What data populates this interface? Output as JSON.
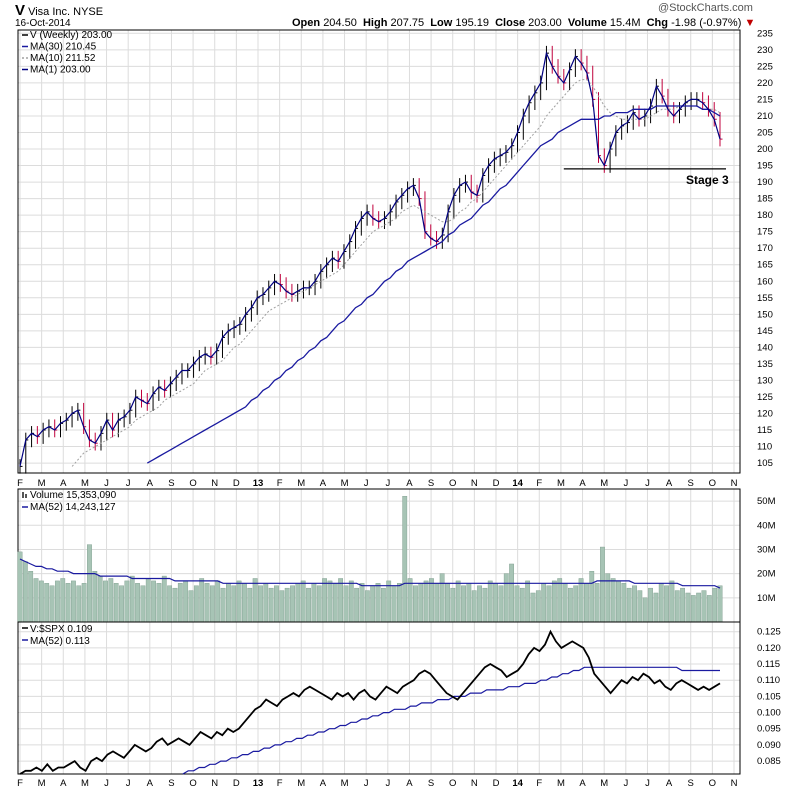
{
  "header": {
    "symbol": "V",
    "name": "Visa Inc.",
    "exchange": "NYSE",
    "date": "16-Oct-2014",
    "open_label": "Open",
    "open": "204.50",
    "high_label": "High",
    "high": "207.75",
    "low_label": "Low",
    "low": "195.19",
    "close_label": "Close",
    "close": "203.00",
    "volume_label": "Volume",
    "volume": "15.4M",
    "chg_label": "Chg",
    "chg": "-1.98 (-0.97%)",
    "watermark": "@StockCharts.com"
  },
  "colors": {
    "ma30": "#1a1aa0",
    "ma10": "#a0a0a0",
    "price": "#000080",
    "up": "#000000",
    "down": "#c0003c",
    "volume_bar": "#a7c4b5",
    "ratio": "#000000",
    "grid": "#dcdcdc"
  },
  "chart_data": [
    {
      "type": "line",
      "panel": "price",
      "legend": [
        "V (Weekly) 203.00",
        "MA(30) 210.45",
        "MA(10) 211.52",
        "MA(1) 203.00"
      ],
      "x_labels": [
        "F",
        "M",
        "A",
        "M",
        "J",
        "J",
        "A",
        "S",
        "O",
        "N",
        "D",
        "13",
        "F",
        "M",
        "A",
        "M",
        "J",
        "J",
        "A",
        "S",
        "O",
        "N",
        "D",
        "14",
        "F",
        "M",
        "A",
        "M",
        "J",
        "J",
        "A",
        "S",
        "O",
        "N"
      ],
      "y_ticks": [
        105,
        110,
        115,
        120,
        125,
        130,
        135,
        140,
        145,
        150,
        155,
        160,
        165,
        170,
        175,
        180,
        185,
        190,
        195,
        200,
        205,
        210,
        215,
        220,
        225,
        230,
        235
      ],
      "ylim": [
        102,
        236
      ],
      "annotation": "Stage 3",
      "support_level": 194,
      "series": [
        {
          "name": "V (Weekly)",
          "values": [
            104,
            112,
            114,
            113,
            115,
            116,
            115,
            117,
            118,
            120,
            121,
            116,
            112,
            111,
            114,
            118,
            115,
            118,
            119,
            121,
            125,
            124,
            123,
            126,
            128,
            127,
            129,
            131,
            133,
            133,
            135,
            137,
            138,
            137,
            139,
            143,
            145,
            146,
            147,
            150,
            152,
            155,
            156,
            158,
            160,
            159,
            157,
            156,
            157,
            158,
            158,
            160,
            163,
            165,
            167,
            166,
            169,
            172,
            176,
            179,
            181,
            179,
            178,
            179,
            181,
            184,
            186,
            188,
            189,
            185,
            175,
            173,
            172,
            174,
            181,
            186,
            189,
            190,
            187,
            186,
            192,
            195,
            197,
            198,
            199,
            201,
            205,
            210,
            214,
            217,
            220,
            229,
            225,
            222,
            220,
            224,
            228,
            226,
            223,
            215,
            198,
            195,
            200,
            205,
            207,
            208,
            211,
            209,
            210,
            213,
            219,
            216,
            212,
            210,
            212,
            214,
            215,
            215,
            214,
            212,
            209,
            203
          ]
        },
        {
          "name": "MA(30)",
          "values": [
            null,
            null,
            null,
            null,
            null,
            null,
            null,
            null,
            null,
            null,
            null,
            null,
            null,
            null,
            null,
            null,
            null,
            null,
            null,
            null,
            null,
            null,
            105,
            106,
            107,
            108,
            109,
            110,
            111,
            112,
            113,
            114,
            115,
            116,
            117,
            118,
            119,
            120,
            121,
            122,
            124,
            125,
            127,
            128,
            130,
            131,
            133,
            134,
            136,
            137,
            139,
            140,
            142,
            143,
            145,
            147,
            148,
            150,
            152,
            153,
            155,
            156,
            158,
            160,
            161,
            163,
            164,
            166,
            167,
            168,
            169,
            170,
            171,
            172,
            174,
            175,
            177,
            178,
            179,
            181,
            183,
            184,
            186,
            188,
            189,
            191,
            193,
            195,
            197,
            199,
            201,
            202,
            203,
            205,
            206,
            207,
            208,
            209,
            209,
            209,
            209,
            210,
            210,
            211,
            211,
            211,
            212,
            212,
            212,
            212,
            213,
            213,
            213,
            213,
            213,
            213,
            213,
            213,
            212,
            212,
            211,
            210
          ]
        },
        {
          "name": "MA(10)",
          "values": [
            null,
            null,
            null,
            null,
            null,
            null,
            null,
            null,
            null,
            104,
            106,
            108,
            109,
            110,
            111,
            112,
            113,
            114,
            115,
            116,
            118,
            119,
            120,
            121,
            122,
            124,
            125,
            126,
            127,
            128,
            129,
            131,
            133,
            134,
            135,
            136,
            138,
            140,
            141,
            143,
            145,
            147,
            149,
            151,
            152,
            153,
            154,
            155,
            156,
            157,
            158,
            159,
            160,
            161,
            162,
            163,
            165,
            167,
            169,
            171,
            173,
            175,
            176,
            177,
            178,
            179,
            181,
            182,
            183,
            182,
            181,
            180,
            179,
            178,
            178,
            179,
            181,
            182,
            184,
            185,
            187,
            189,
            191,
            193,
            195,
            197,
            199,
            201,
            203,
            205,
            207,
            210,
            212,
            214,
            216,
            218,
            220,
            221,
            221,
            219,
            216,
            213,
            211,
            210,
            209,
            209,
            209,
            209,
            209,
            210,
            211,
            212,
            212,
            212,
            213,
            213,
            213,
            213,
            212,
            212,
            212,
            211
          ]
        }
      ]
    },
    {
      "type": "bar",
      "panel": "volume",
      "legend": [
        "Volume 15,353,090",
        "MA(52) 14,243,127"
      ],
      "y_ticks": [
        "10M",
        "20M",
        "30M",
        "40M",
        "50M"
      ],
      "ylim": [
        0,
        55
      ],
      "series": [
        {
          "name": "Volume",
          "values": [
            29,
            25,
            21,
            18,
            17,
            16,
            15,
            17,
            18,
            16,
            17,
            15,
            16,
            32,
            21,
            19,
            17,
            18,
            16,
            15,
            17,
            19,
            16,
            15,
            18,
            17,
            16,
            19,
            15,
            14,
            16,
            17,
            13,
            15,
            18,
            16,
            15,
            17,
            14,
            16,
            15,
            17,
            16,
            14,
            18,
            15,
            16,
            14,
            15,
            13,
            14,
            15,
            16,
            17,
            14,
            16,
            15,
            18,
            17,
            16,
            18,
            15,
            17,
            14,
            16,
            13,
            15,
            16,
            14,
            17,
            15,
            16,
            52,
            18,
            15,
            16,
            17,
            18,
            16,
            20,
            16,
            14,
            17,
            15,
            16,
            13,
            15,
            14,
            17,
            16,
            15,
            20,
            24,
            15,
            14,
            17,
            12,
            13,
            16,
            15,
            17,
            18,
            16,
            14,
            15,
            18,
            16,
            21,
            16,
            31,
            20,
            18,
            17,
            16,
            14,
            15,
            13,
            10,
            14,
            12,
            16,
            15,
            17,
            13,
            14,
            12,
            11,
            12,
            13,
            11,
            14,
            15
          ]
        },
        {
          "name": "MA(52)",
          "values": [
            26,
            25,
            24,
            23,
            23,
            22,
            22,
            21,
            21,
            21,
            20,
            20,
            20,
            20,
            20,
            19,
            19,
            19,
            19,
            19,
            19,
            18,
            18,
            18,
            18,
            18,
            18,
            18,
            18,
            17,
            17,
            17,
            17,
            17,
            17,
            17,
            17,
            17,
            16,
            16,
            16,
            16,
            16,
            16,
            16,
            16,
            16,
            16,
            16,
            16,
            16,
            16,
            16,
            16,
            16,
            16,
            16,
            16,
            16,
            16,
            16,
            16,
            16,
            16,
            15,
            15,
            15,
            15,
            15,
            15,
            15,
            15,
            16,
            16,
            16,
            16,
            16,
            16,
            16,
            16,
            16,
            16,
            16,
            16,
            16,
            16,
            16,
            16,
            16,
            16,
            16,
            16,
            16,
            16,
            16,
            16,
            16,
            16,
            16,
            16,
            16,
            16,
            16,
            16,
            16,
            16,
            16,
            16,
            17,
            17,
            17,
            17,
            17,
            17,
            17,
            16,
            16,
            16,
            16,
            16,
            16,
            16,
            16,
            16,
            15,
            15,
            15,
            15,
            15,
            15,
            15,
            14
          ]
        }
      ]
    },
    {
      "type": "line",
      "panel": "relative",
      "legend": [
        "V:$SPX 0.109",
        "MA(52) 0.113"
      ],
      "y_ticks": [
        0.085,
        0.09,
        0.095,
        0.1,
        0.105,
        0.11,
        0.115,
        0.12,
        0.125
      ],
      "ylim": [
        0.081,
        0.128
      ],
      "series": [
        {
          "name": "V:$SPX",
          "values": [
            0.081,
            0.082,
            0.082,
            0.083,
            0.082,
            0.084,
            0.082,
            0.083,
            0.083,
            0.084,
            0.085,
            0.083,
            0.082,
            0.085,
            0.086,
            0.085,
            0.087,
            0.088,
            0.087,
            0.086,
            0.088,
            0.09,
            0.089,
            0.088,
            0.089,
            0.091,
            0.092,
            0.09,
            0.091,
            0.092,
            0.091,
            0.09,
            0.092,
            0.094,
            0.093,
            0.092,
            0.094,
            0.093,
            0.095,
            0.094,
            0.095,
            0.097,
            0.099,
            0.101,
            0.102,
            0.104,
            0.103,
            0.102,
            0.104,
            0.105,
            0.106,
            0.105,
            0.107,
            0.108,
            0.107,
            0.106,
            0.105,
            0.104,
            0.106,
            0.105,
            0.106,
            0.104,
            0.106,
            0.107,
            0.105,
            0.104,
            0.106,
            0.108,
            0.107,
            0.106,
            0.108,
            0.109,
            0.11,
            0.112,
            0.113,
            0.112,
            0.11,
            0.108,
            0.106,
            0.105,
            0.104,
            0.106,
            0.108,
            0.11,
            0.112,
            0.114,
            0.115,
            0.114,
            0.113,
            0.111,
            0.112,
            0.113,
            0.115,
            0.118,
            0.12,
            0.119,
            0.121,
            0.125,
            0.122,
            0.12,
            0.121,
            0.122,
            0.121,
            0.12,
            0.117,
            0.112,
            0.11,
            0.108,
            0.106,
            0.108,
            0.11,
            0.109,
            0.111,
            0.11,
            0.112,
            0.111,
            0.109,
            0.11,
            0.108,
            0.107,
            0.109,
            0.11,
            0.109,
            0.108,
            0.107,
            0.108,
            0.107,
            0.108,
            0.109
          ]
        },
        {
          "name": "MA(52)",
          "values": [
            null,
            null,
            null,
            null,
            null,
            null,
            null,
            null,
            null,
            null,
            null,
            null,
            null,
            null,
            null,
            null,
            null,
            null,
            null,
            null,
            null,
            null,
            null,
            null,
            null,
            null,
            null,
            null,
            null,
            null,
            0.081,
            0.082,
            0.082,
            0.083,
            0.083,
            0.084,
            0.084,
            0.085,
            0.085,
            0.086,
            0.086,
            0.087,
            0.087,
            0.088,
            0.088,
            0.089,
            0.089,
            0.09,
            0.09,
            0.091,
            0.091,
            0.092,
            0.092,
            0.093,
            0.093,
            0.094,
            0.094,
            0.095,
            0.095,
            0.096,
            0.096,
            0.097,
            0.097,
            0.098,
            0.098,
            0.099,
            0.099,
            0.1,
            0.1,
            0.101,
            0.101,
            0.101,
            0.102,
            0.102,
            0.103,
            0.103,
            0.103,
            0.104,
            0.104,
            0.104,
            0.105,
            0.105,
            0.105,
            0.106,
            0.106,
            0.106,
            0.107,
            0.107,
            0.107,
            0.107,
            0.108,
            0.108,
            0.108,
            0.109,
            0.109,
            0.109,
            0.11,
            0.11,
            0.111,
            0.111,
            0.112,
            0.112,
            0.113,
            0.113,
            0.114,
            0.114,
            0.114,
            0.114,
            0.114,
            0.114,
            0.114,
            0.114,
            0.114,
            0.114,
            0.114,
            0.114,
            0.114,
            0.114,
            0.114,
            0.114,
            0.114,
            0.114,
            0.113,
            0.113,
            0.113,
            0.113,
            0.113,
            0.113,
            0.113,
            0.113
          ]
        }
      ]
    }
  ]
}
